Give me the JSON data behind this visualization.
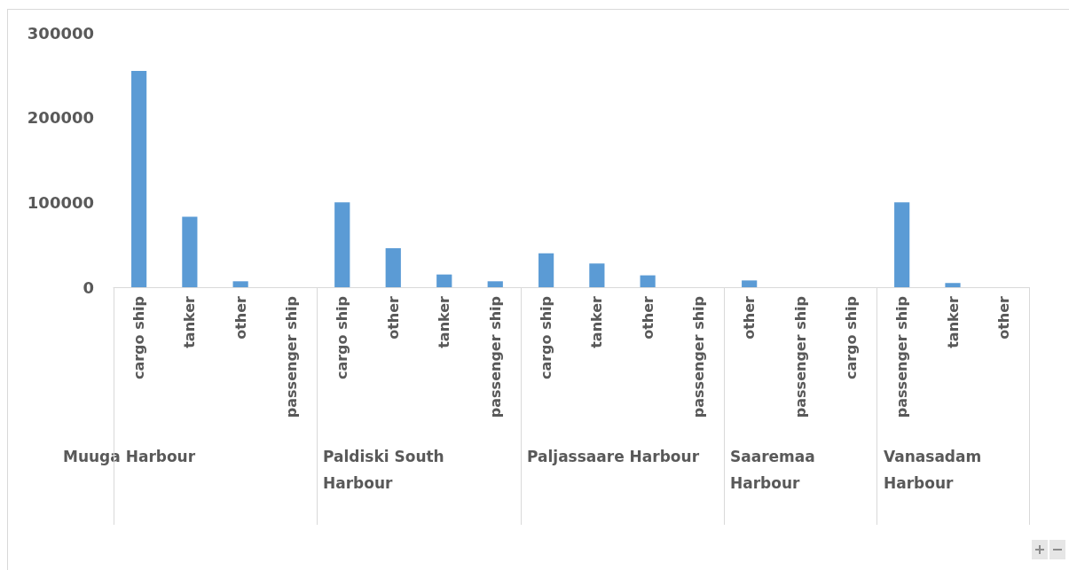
{
  "chart_data": [
    {
      "type": "bar",
      "xlabel": "Muuga Harbour",
      "categories": [
        "cargo ship",
        "tanker",
        "other",
        "passenger ship"
      ],
      "values": [
        255000,
        83000,
        7000,
        0
      ],
      "color": "#5b9bd5",
      "ylim": [
        0,
        300000
      ],
      "yticks": [
        0,
        100000,
        200000,
        300000
      ]
    },
    {
      "type": "bar",
      "xlabel": "Paldiski South Harbour",
      "categories": [
        "cargo ship",
        "other",
        "tanker",
        "passenger ship"
      ],
      "values": [
        100000,
        46000,
        15000,
        7000
      ],
      "color": "#5b9bd5",
      "ylim": [
        0,
        300000
      ],
      "yticks": [
        0,
        100000,
        200000,
        300000
      ],
      "tick_labels": "x"
    },
    {
      "type": "bar",
      "xlabel": "Paljassaare Harbour",
      "categories": [
        "cargo ship",
        "tanker",
        "other",
        "passenger ship"
      ],
      "values": [
        40000,
        28000,
        14000,
        0
      ],
      "color": "#5b9bd5",
      "ylim": [
        0,
        300000
      ],
      "yticks": [
        0,
        100000,
        200000,
        300000
      ],
      "tick_labels": "x"
    },
    {
      "type": "bar",
      "xlabel": "Saaremaa Harbour",
      "categories": [
        "other",
        "passenger ship",
        "cargo ship"
      ],
      "values": [
        8000,
        0,
        0
      ],
      "color": "#5b9bd5",
      "ylim": [
        0,
        300000
      ],
      "yticks": [
        0,
        100000,
        200000,
        300000
      ],
      "tick_labels": "x"
    },
    {
      "type": "bar",
      "xlabel": "Vanasadam Harbour",
      "categories": [
        "passenger ship",
        "tanker",
        "other"
      ],
      "values": [
        100000,
        5000,
        0
      ],
      "color": "#5b9bd5",
      "ylim": [
        0,
        300000
      ],
      "yticks": [
        0,
        100000,
        200000,
        300000
      ],
      "tick_labels": "x"
    }
  ]
}
